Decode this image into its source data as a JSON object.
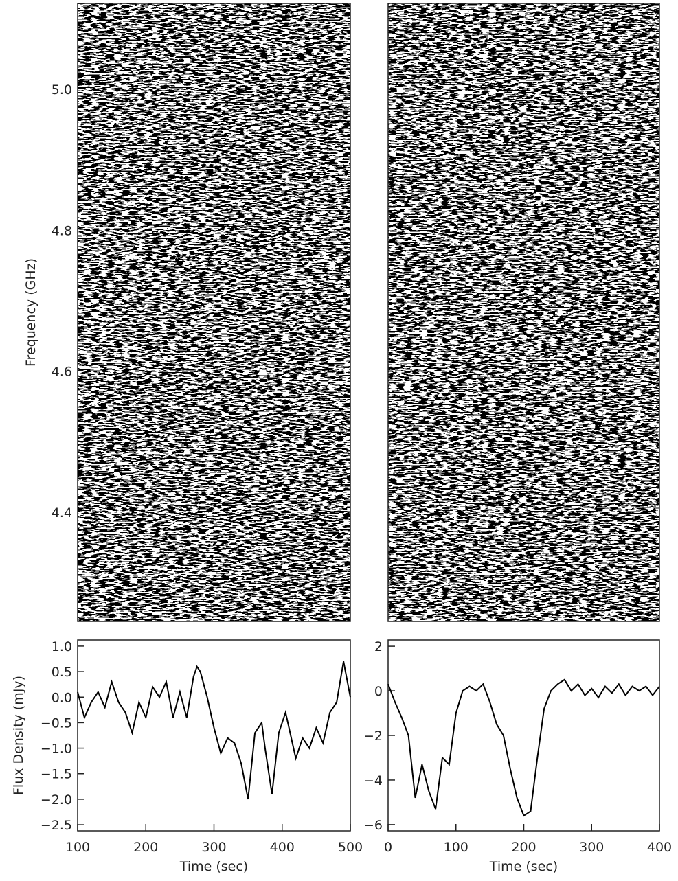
{
  "chart_data": [
    {
      "type": "dynamic-spectrum",
      "ylabel": "Frequency (GHz)",
      "ylim": [
        4.245,
        5.122
      ],
      "yticks": [
        4.4,
        4.6,
        4.8,
        {
          "value": 5,
          "label": "5.0"
        }
      ]
    },
    {
      "type": "dynamic-spectrum",
      "ylim": [
        4.245,
        5.122
      ]
    },
    {
      "type": "line",
      "xlabel": "Time (sec)",
      "ylabel": "Flux Density (mJy)",
      "color": "#000000",
      "xlim": [
        100,
        500
      ],
      "xticks": [
        100,
        200,
        300,
        400,
        500
      ],
      "ylim": [
        -2.62,
        1.12
      ],
      "yticks": [
        {
          "value": 1,
          "label": "1.0"
        },
        0.5,
        {
          "value": 0,
          "label": "0.0"
        },
        {
          "value": -0.5,
          "label": "−0.5"
        },
        {
          "value": -1,
          "label": "−1.0"
        },
        {
          "value": -1.5,
          "label": "−1.5"
        },
        {
          "value": -2,
          "label": "−2.0"
        },
        {
          "value": -2.5,
          "label": "−2.5"
        }
      ],
      "x": [
        100,
        110,
        120,
        130,
        140,
        150,
        160,
        170,
        180,
        190,
        200,
        210,
        220,
        230,
        240,
        250,
        260,
        270,
        275,
        280,
        290,
        300,
        310,
        320,
        330,
        340,
        350,
        360,
        370,
        375,
        385,
        395,
        405,
        410,
        420,
        430,
        440,
        450,
        460,
        470,
        480,
        490,
        500
      ],
      "values": [
        0.1,
        -0.4,
        -0.1,
        0.1,
        -0.2,
        0.3,
        -0.1,
        -0.3,
        -0.7,
        -0.1,
        -0.4,
        0.2,
        0.0,
        0.3,
        -0.4,
        0.1,
        -0.4,
        0.4,
        0.6,
        0.5,
        0.0,
        -0.6,
        -1.1,
        -0.8,
        -0.9,
        -1.3,
        -2.0,
        -0.7,
        -0.5,
        -1.0,
        -1.9,
        -0.7,
        -0.3,
        -0.6,
        -1.2,
        -0.8,
        -1.0,
        -0.6,
        -0.9,
        -0.3,
        -0.1,
        0.7,
        0.0
      ]
    },
    {
      "type": "line",
      "xlabel": "Time (sec)",
      "color": "#000000",
      "xlim": [
        0,
        400
      ],
      "xticks": [
        0,
        100,
        200,
        300,
        400
      ],
      "ylim": [
        -6.28,
        2.28
      ],
      "yticks": [
        2,
        0,
        {
          "value": -2,
          "label": "−2"
        },
        {
          "value": -4,
          "label": "−4"
        },
        {
          "value": -6,
          "label": "−6"
        }
      ],
      "x": [
        0,
        10,
        20,
        30,
        40,
        50,
        60,
        70,
        80,
        90,
        100,
        110,
        120,
        130,
        140,
        150,
        160,
        170,
        180,
        190,
        200,
        210,
        220,
        230,
        240,
        250,
        260,
        270,
        280,
        290,
        300,
        310,
        320,
        330,
        340,
        350,
        360,
        370,
        380,
        390,
        400
      ],
      "values": [
        0.3,
        -0.5,
        -1.2,
        -2.0,
        -4.8,
        -3.3,
        -4.5,
        -5.3,
        -3.0,
        -3.3,
        -1.0,
        0.0,
        0.2,
        0.0,
        0.3,
        -0.5,
        -1.5,
        -2.0,
        -3.5,
        -4.8,
        -5.6,
        -5.4,
        -3.0,
        -0.8,
        0.0,
        0.3,
        0.5,
        0.0,
        0.3,
        -0.2,
        0.1,
        -0.3,
        0.2,
        -0.1,
        0.3,
        -0.2,
        0.2,
        0.0,
        0.2,
        -0.2,
        0.2
      ]
    }
  ]
}
